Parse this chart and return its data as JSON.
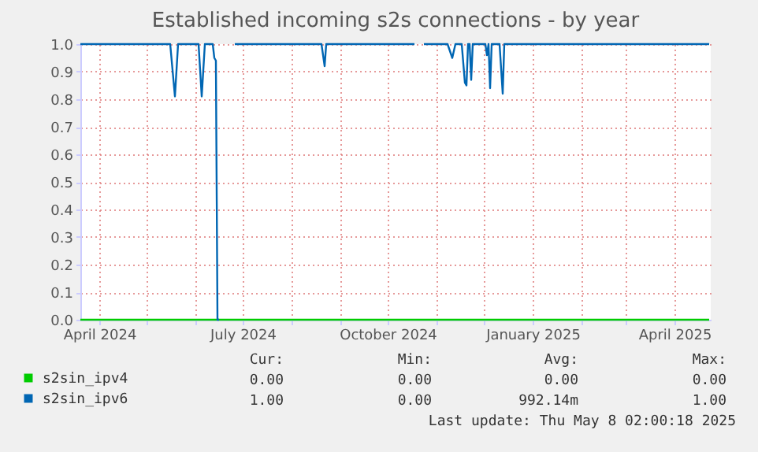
{
  "chart_data": {
    "type": "line",
    "title": "Established incoming s2s connections - by year",
    "series": [
      {
        "name": "s2sin_ipv4",
        "color": "#00cc00",
        "x": [
          "2024-03-20",
          "2025-04-23"
        ],
        "values": [
          0,
          0
        ]
      },
      {
        "name": "s2sin_ipv6",
        "color": "#0066b3",
        "x": [
          "2024-03-20",
          "2024-05-16",
          "2024-05-19",
          "2024-05-21",
          "2024-06-03",
          "2024-06-05",
          "2024-06-07",
          "2024-06-12",
          "2024-06-13",
          "2024-06-14",
          "2024-06-15",
          "2024-06-16",
          "2024-06-20",
          "2024-06-26",
          "2024-08-20",
          "2024-08-22",
          "2024-08-23",
          "2024-10-18",
          "2024-10-21",
          "2024-10-24",
          "2024-11-08",
          "2024-11-11",
          "2024-11-13",
          "2024-11-17",
          "2024-11-19",
          "2024-11-20",
          "2024-11-21",
          "2024-11-22",
          "2024-11-23",
          "2024-11-24",
          "2024-12-02",
          "2024-12-03",
          "2024-12-04",
          "2024-12-05",
          "2024-12-06",
          "2024-12-11",
          "2024-12-13",
          "2024-12-14",
          "2025-04-23"
        ],
        "values": [
          1,
          1,
          0.81,
          1,
          1,
          0.81,
          1,
          1,
          0.95,
          0.94,
          0,
          0,
          null,
          1,
          1,
          0.92,
          1,
          1,
          null,
          1,
          1,
          0.95,
          1,
          1,
          0.86,
          0.85,
          1,
          1,
          0.87,
          1,
          1,
          0.96,
          1,
          0.84,
          1,
          1,
          0.82,
          1,
          1
        ]
      }
    ],
    "xlim": [
      "2024-03-20",
      "2025-04-24"
    ],
    "xticks": [
      {
        "value": "2024-04-01",
        "label": "April 2024"
      },
      {
        "value": "2024-05-01",
        "label": null
      },
      {
        "value": "2024-06-01",
        "label": null
      },
      {
        "value": "2024-07-01",
        "label": "July 2024"
      },
      {
        "value": "2024-08-01",
        "label": null
      },
      {
        "value": "2024-09-01",
        "label": null
      },
      {
        "value": "2024-10-01",
        "label": "October 2024"
      },
      {
        "value": "2024-11-01",
        "label": null
      },
      {
        "value": "2024-12-01",
        "label": null
      },
      {
        "value": "2025-01-01",
        "label": "January 2025"
      },
      {
        "value": "2025-02-01",
        "label": null
      },
      {
        "value": "2025-03-01",
        "label": null
      },
      {
        "value": "2025-04-01",
        "label": "April 2025"
      }
    ],
    "ylim": [
      0,
      1
    ],
    "yticks": [
      {
        "value": 0,
        "label": "0.0"
      },
      {
        "value": 0.1,
        "label": "0.1"
      },
      {
        "value": 0.2,
        "label": "0.2"
      },
      {
        "value": 0.3,
        "label": "0.3"
      },
      {
        "value": 0.4,
        "label": "0.4"
      },
      {
        "value": 0.5,
        "label": "0.5"
      },
      {
        "value": 0.6,
        "label": "0.6"
      },
      {
        "value": 0.7,
        "label": "0.7"
      },
      {
        "value": 0.8,
        "label": "0.8"
      },
      {
        "value": 0.9,
        "label": "0.9"
      },
      {
        "value": 1,
        "label": "1.0"
      }
    ],
    "grid": true,
    "legend": "bottom",
    "marker": "none",
    "line_style": "solid",
    "annotations": [
      "Cur:",
      "Min:",
      "Avg:",
      "Max:",
      "0.00",
      "0.00",
      "0.00",
      "0.00",
      "1.00",
      "0.00",
      "992.14m",
      "1.00",
      "Last update: Thu May  8 02:00:18 2025"
    ]
  }
}
